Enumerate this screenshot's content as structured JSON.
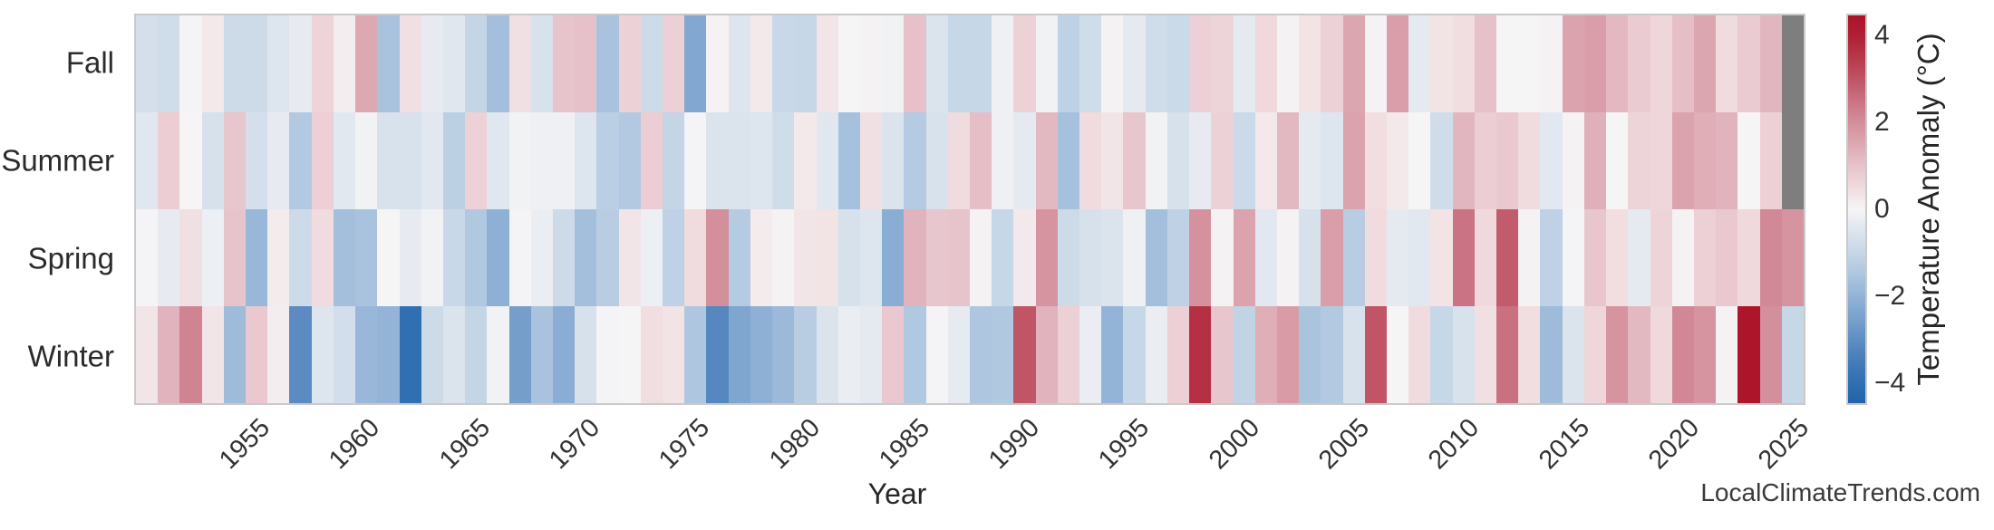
{
  "watermark": "LocalClimateTrends.com",
  "x_axis": {
    "title": "Year",
    "tick_years": [
      1955,
      1960,
      1965,
      1970,
      1975,
      1980,
      1985,
      1990,
      1995,
      2000,
      2005,
      2010,
      2015,
      2020,
      2025
    ]
  },
  "colorbar": {
    "title": "Temperature Anomaly (°C)",
    "ticks": [
      {
        "label": "4",
        "value": 4
      },
      {
        "label": "2",
        "value": 2
      },
      {
        "label": "0",
        "value": 0
      },
      {
        "label": "−2",
        "value": -2
      },
      {
        "label": "−4",
        "value": -4
      }
    ],
    "vmin": -4.5,
    "vmax": 4.5
  },
  "chart_data": {
    "type": "heatmap",
    "title": "",
    "xlabel": "Year",
    "ylabel": "",
    "legend_label": "Temperature Anomaly (°C)",
    "value_range": [
      -4.5,
      4.5
    ],
    "nan_color": "#7e7e7e",
    "colormap_stops": [
      [
        -4.5,
        "#2263ab"
      ],
      [
        -4.0,
        "#3070b2"
      ],
      [
        -3.5,
        "#477db9"
      ],
      [
        -3.0,
        "#608fc3"
      ],
      [
        -2.5,
        "#7aa2cd"
      ],
      [
        -2.0,
        "#94b4d7"
      ],
      [
        -1.5,
        "#aec6df"
      ],
      [
        -1.0,
        "#c6d7e7"
      ],
      [
        -0.5,
        "#dde5ee"
      ],
      [
        0.0,
        "#f6f5f6"
      ],
      [
        0.5,
        "#f0dbde"
      ],
      [
        1.0,
        "#e7c4cb"
      ],
      [
        1.5,
        "#ddа8b2"
      ],
      [
        2.0,
        "#d48f9c"
      ],
      [
        2.5,
        "#ca7384"
      ],
      [
        3.0,
        "#c05566"
      ],
      [
        3.5,
        "#b63a4a"
      ],
      [
        4.0,
        "#b02136"
      ],
      [
        4.5,
        "#ac1228"
      ]
    ],
    "years": [
      1950,
      1951,
      1952,
      1953,
      1954,
      1955,
      1956,
      1957,
      1958,
      1959,
      1960,
      1961,
      1962,
      1963,
      1964,
      1965,
      1966,
      1967,
      1968,
      1969,
      1970,
      1971,
      1972,
      1973,
      1974,
      1975,
      1976,
      1977,
      1978,
      1979,
      1980,
      1981,
      1982,
      1983,
      1984,
      1985,
      1986,
      1987,
      1988,
      1989,
      1990,
      1991,
      1992,
      1993,
      1994,
      1995,
      1996,
      1997,
      1998,
      1999,
      2000,
      2001,
      2002,
      2003,
      2004,
      2005,
      2006,
      2007,
      2008,
      2009,
      2010,
      2011,
      2012,
      2013,
      2014,
      2015,
      2016,
      2017,
      2018,
      2019,
      2020,
      2021,
      2022,
      2023,
      2024,
      2025
    ],
    "series": [
      {
        "name": "Fall",
        "values": [
          -0.7,
          -0.8,
          -0.05,
          0.25,
          -0.85,
          -0.85,
          -0.5,
          -0.3,
          0.65,
          0.15,
          1.5,
          -1.6,
          0.4,
          -0.3,
          -0.45,
          -1.05,
          -1.7,
          0.4,
          -0.6,
          1.0,
          1.05,
          -1.6,
          0.7,
          -0.85,
          0.75,
          -2.35,
          0.05,
          -0.5,
          0.25,
          -0.95,
          -1.0,
          0.3,
          0.0,
          0.05,
          -0.1,
          1.05,
          -0.55,
          -1.0,
          -1.0,
          -0.15,
          0.7,
          -0.1,
          -1.15,
          -0.8,
          0.05,
          -0.35,
          -0.8,
          -0.9,
          0.75,
          0.65,
          -0.35,
          0.55,
          0.05,
          0.35,
          0.7,
          1.55,
          0.05,
          1.7,
          -0.35,
          0.35,
          0.45,
          1.05,
          0.0,
          0.0,
          0.05,
          1.6,
          1.7,
          1.2,
          0.85,
          0.6,
          1.1,
          1.55,
          0.5,
          0.85,
          1.25,
          null
        ]
      },
      {
        "name": "Summer",
        "values": [
          -0.45,
          0.8,
          0.0,
          -0.65,
          0.95,
          -0.7,
          -0.3,
          -1.4,
          0.75,
          -0.4,
          -0.1,
          -0.6,
          -0.6,
          -0.4,
          -1.2,
          0.7,
          -0.45,
          -0.1,
          -0.15,
          -0.15,
          -0.5,
          -1.25,
          -1.4,
          0.8,
          -1.05,
          -0.05,
          -0.55,
          -0.55,
          -0.5,
          -0.8,
          0.25,
          -0.45,
          -1.65,
          0.4,
          -0.55,
          -1.35,
          -0.6,
          0.5,
          1.1,
          -0.15,
          -0.35,
          1.2,
          -1.65,
          0.5,
          0.3,
          0.95,
          -0.1,
          -0.65,
          -0.3,
          0.7,
          -0.9,
          0.25,
          1.2,
          -0.35,
          -0.5,
          1.6,
          0.45,
          0.25,
          0.0,
          -0.8,
          1.25,
          0.8,
          0.9,
          0.5,
          -0.4,
          0.05,
          1.35,
          0.0,
          0.65,
          0.6,
          1.6,
          1.4,
          1.3,
          0.0,
          0.75,
          null
        ]
      },
      {
        "name": "Spring",
        "values": [
          -0.05,
          -0.3,
          0.4,
          -0.2,
          1.0,
          -1.9,
          0.2,
          -0.85,
          0.5,
          -1.7,
          -1.6,
          0.0,
          -0.3,
          -0.1,
          -0.95,
          -1.45,
          -2.1,
          -0.05,
          -0.25,
          -0.85,
          -1.7,
          -1.3,
          0.3,
          -0.2,
          -1.15,
          0.5,
          2.0,
          -1.35,
          0.2,
          0.05,
          0.3,
          0.35,
          -0.65,
          -0.5,
          -2.2,
          1.3,
          0.95,
          1.0,
          0.05,
          -1.0,
          0.25,
          1.9,
          -0.85,
          -0.65,
          -0.55,
          -0.15,
          -1.7,
          -1.15,
          1.95,
          0.05,
          1.6,
          -0.4,
          0.05,
          -0.65,
          1.7,
          -1.3,
          0.5,
          -0.35,
          -0.4,
          0.35,
          2.5,
          0.55,
          2.9,
          0.05,
          -1.15,
          -0.05,
          0.95,
          0.45,
          -0.35,
          0.65,
          0.05,
          0.75,
          0.9,
          0.55,
          2.1,
          1.9
        ]
      },
      {
        "name": "Winter",
        "values": [
          0.3,
          1.3,
          2.2,
          0.3,
          -1.8,
          0.9,
          0.15,
          -3.1,
          -0.5,
          -0.75,
          -1.9,
          -2.0,
          -4.0,
          -0.85,
          -0.55,
          -1.05,
          -0.1,
          -2.6,
          -1.6,
          -2.2,
          -0.65,
          -0.05,
          0.0,
          0.45,
          0.35,
          -1.5,
          -3.2,
          -2.4,
          -2.1,
          -1.85,
          -1.3,
          -0.55,
          -0.25,
          -0.35,
          0.9,
          -1.45,
          -0.05,
          -0.3,
          -1.5,
          -1.45,
          3.0,
          1.3,
          0.75,
          -0.25,
          -2.0,
          -1.0,
          -0.25,
          0.75,
          3.7,
          0.95,
          -1.1,
          1.4,
          1.75,
          -1.55,
          -1.4,
          -0.6,
          3.0,
          0.0,
          0.5,
          -1.0,
          -0.6,
          0.4,
          2.55,
          0.45,
          -1.8,
          -0.55,
          0.6,
          1.9,
          1.2,
          0.55,
          2.15,
          1.9,
          0.05,
          4.4,
          2.0,
          -1.0
        ]
      }
    ]
  }
}
